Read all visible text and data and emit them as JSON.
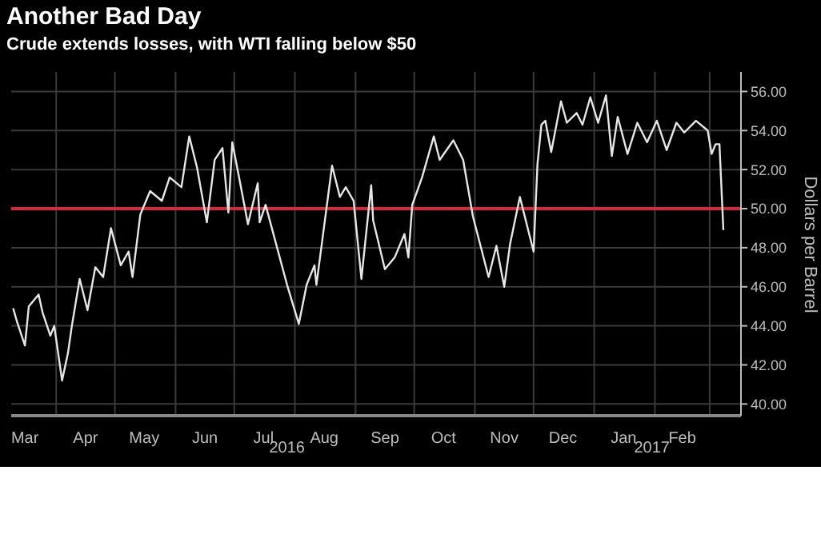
{
  "chart_data": {
    "type": "line",
    "title": "Another Bad Day",
    "subtitle": "Crude extends losses, with WTI falling below $50",
    "ylabel": "Dollars per Barrel",
    "x": [
      "2016-03-10",
      "2016-03-12",
      "2016-03-16",
      "2016-03-18",
      "2016-03-23",
      "2016-03-25",
      "2016-03-29",
      "2016-03-31",
      "2016-04-04",
      "2016-04-07",
      "2016-04-09",
      "2016-04-13",
      "2016-04-17",
      "2016-04-21",
      "2016-04-25",
      "2016-04-29",
      "2016-05-04",
      "2016-05-08",
      "2016-05-10",
      "2016-05-14",
      "2016-05-19",
      "2016-05-25",
      "2016-05-29",
      "2016-06-04",
      "2016-06-08",
      "2016-06-12",
      "2016-06-17",
      "2016-06-21",
      "2016-06-25",
      "2016-06-28",
      "2016-06-30",
      "2016-07-05",
      "2016-07-08",
      "2016-07-13",
      "2016-07-14",
      "2016-07-17",
      "2016-07-28",
      "2016-08-03",
      "2016-08-07",
      "2016-08-11",
      "2016-08-12",
      "2016-08-20",
      "2016-08-24",
      "2016-08-27",
      "2016-08-31",
      "2016-09-04",
      "2016-09-09",
      "2016-09-10",
      "2016-09-16",
      "2016-09-21",
      "2016-09-26",
      "2016-09-28",
      "2016-09-30",
      "2016-10-05",
      "2016-10-11",
      "2016-10-14",
      "2016-10-21",
      "2016-10-26",
      "2016-10-31",
      "2016-11-08",
      "2016-11-12",
      "2016-11-16",
      "2016-11-19",
      "2016-11-24",
      "2016-11-29",
      "2016-12-01",
      "2016-12-03",
      "2016-12-05",
      "2016-12-07",
      "2016-12-10",
      "2016-12-15",
      "2016-12-18",
      "2016-12-23",
      "2016-12-26",
      "2016-12-30",
      "2017-01-03",
      "2017-01-07",
      "2017-01-10",
      "2017-01-13",
      "2017-01-18",
      "2017-01-23",
      "2017-01-28",
      "2017-02-02",
      "2017-02-07",
      "2017-02-12",
      "2017-02-16",
      "2017-02-22",
      "2017-02-28",
      "2017-03-02",
      "2017-03-04",
      "2017-03-06",
      "2017-03-08"
    ],
    "series": [
      {
        "color": "#e6e6e6",
        "values": [
          44.9,
          44.2,
          43.0,
          45.0,
          45.6,
          44.7,
          43.5,
          44.0,
          41.2,
          42.6,
          44.0,
          46.4,
          44.8,
          47.0,
          46.5,
          49.0,
          47.1,
          47.8,
          46.5,
          49.7,
          50.9,
          50.4,
          51.6,
          51.1,
          53.7,
          52.1,
          49.3,
          52.5,
          53.1,
          49.8,
          53.4,
          50.8,
          49.2,
          51.3,
          49.3,
          50.2,
          46.1,
          44.1,
          46.1,
          47.1,
          46.1,
          52.2,
          50.6,
          51.1,
          50.4,
          46.4,
          51.2,
          49.4,
          46.9,
          47.5,
          48.7,
          47.5,
          50.2,
          51.6,
          53.7,
          52.5,
          53.5,
          52.5,
          49.6,
          46.5,
          48.1,
          46.0,
          48.2,
          50.6,
          48.6,
          47.8,
          52.3,
          54.3,
          54.5,
          52.9,
          55.5,
          54.4,
          54.9,
          54.3,
          55.7,
          54.4,
          55.8,
          52.7,
          54.7,
          52.8,
          54.4,
          53.4,
          54.5,
          53.0,
          54.4,
          53.9,
          54.5,
          54.0,
          52.8,
          53.3,
          53.3,
          48.9
        ]
      }
    ],
    "xlim": [
      "2016-03-09",
      "2017-03-17"
    ],
    "xticks": [
      {
        "value": "2016-03-16",
        "label": "Mar"
      },
      {
        "value": "2016-04-01",
        "label": null
      },
      {
        "value": "2016-04-16",
        "label": "Apr"
      },
      {
        "value": "2016-05-01",
        "label": null
      },
      {
        "value": "2016-05-16",
        "label": "May"
      },
      {
        "value": "2016-06-01",
        "label": null
      },
      {
        "value": "2016-06-16",
        "label": "Jun"
      },
      {
        "value": "2016-07-01",
        "label": null
      },
      {
        "value": "2016-07-16",
        "label": "Jul"
      },
      {
        "value": "2016-08-01",
        "label": null
      },
      {
        "value": "2016-08-16",
        "label": "Aug"
      },
      {
        "value": "2016-09-01",
        "label": null
      },
      {
        "value": "2016-09-16",
        "label": "Sep"
      },
      {
        "value": "2016-10-01",
        "label": null
      },
      {
        "value": "2016-10-16",
        "label": "Oct"
      },
      {
        "value": "2016-11-01",
        "label": null
      },
      {
        "value": "2016-11-16",
        "label": "Nov"
      },
      {
        "value": "2016-12-01",
        "label": null
      },
      {
        "value": "2016-12-16",
        "label": "Dec"
      },
      {
        "value": "2017-01-01",
        "label": null
      },
      {
        "value": "2017-01-16",
        "label": "Jan"
      },
      {
        "value": "2017-02-01",
        "label": null
      },
      {
        "value": "2017-02-15",
        "label": "Feb"
      },
      {
        "value": "2017-03-01",
        "label": null
      }
    ],
    "ylim": [
      39.4,
      57
    ],
    "yticks": [
      {
        "value": 40,
        "label": "40.00"
      },
      {
        "value": 42,
        "label": "42.00"
      },
      {
        "value": 44,
        "label": "44.00"
      },
      {
        "value": 46,
        "label": "46.00"
      },
      {
        "value": 48,
        "label": "48.00"
      },
      {
        "value": 50,
        "label": "50.00"
      },
      {
        "value": 52,
        "label": "52.00"
      },
      {
        "value": 54,
        "label": "54.00"
      },
      {
        "value": 56,
        "label": "56.00"
      }
    ],
    "ref_lines": [
      {
        "axis": "y",
        "value": 50,
        "color": "#d42a3c"
      }
    ],
    "annotations": [
      "2016",
      "2017"
    ],
    "grid": true
  }
}
